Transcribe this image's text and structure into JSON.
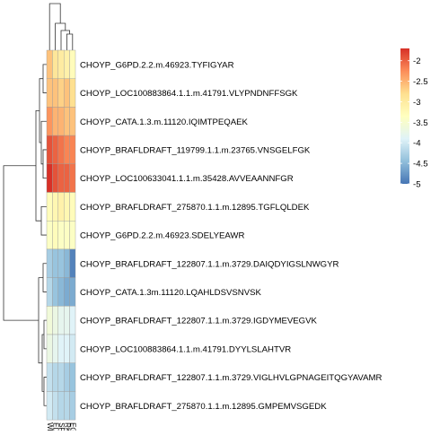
{
  "chart_data": {
    "type": "heatmap",
    "title": "",
    "rows": [
      "CHOYP_G6PD.2.2.m.46923.TYFIGYAR",
      "CHOYP_LOC100883864.1.1.m.41791.VLYPNDNFFSGK",
      "CHOYP_CATA.1.3.m.11120.IQIMTPEQAEK",
      "CHOYP_BRAFLDRAFT_119799.1.1.m.23765.VNSGELFGK",
      "CHOYP_LOC100633041.1.1.m.35428.AVVEAANNFGR",
      "CHOYP_BRAFLDRAFT_275870.1.1.m.12895.TGFLQLDEK",
      "CHOYP_G6PD.2.2.m.46923.SDELYEAWR",
      "CHOYP_BRAFLDRAFT_122807.1.1.m.3729.DAIQDYIGSLNWGYR",
      "CHOYP_CATA.1.3m.11120.LQAHLDSVSNVSK",
      "CHOYP_BRAFLDRAFT_122807.1.1.m.3729.IGDYMEVEGVK",
      "CHOYP_LOC100883864.1.1.m.41791.DYYLSLAHTVR",
      "CHOYP_BRAFLDRAFT_122807.1.1.m.3729.VIGLHVLGPNAGEITQGYAVAMR",
      "CHOYP_BRAFLDRAFT_275870.1.1.m.12895.GMPEMVSGEDK"
    ],
    "columns": [
      "WB",
      "ED",
      "SR",
      "RK",
      "EG"
    ],
    "values": [
      [
        -2.6,
        -2.9,
        -3.0,
        -3.1,
        -3.3
      ],
      [
        -2.6,
        -2.6,
        -2.7,
        -2.6,
        -2.8
      ],
      [
        -2.3,
        -2.5,
        -2.5,
        -2.6,
        -2.6
      ],
      [
        -1.9,
        -2.0,
        -2.1,
        -2.2,
        -2.2
      ],
      [
        -1.7,
        -1.9,
        -2.0,
        -2.0,
        -2.1
      ],
      [
        -3.3,
        -3.2,
        -3.1,
        -3.2,
        -3.3
      ],
      [
        -3.4,
        -3.3,
        -3.4,
        -3.4,
        -3.4
      ],
      [
        -4.3,
        -4.4,
        -4.4,
        -4.5,
        -4.9
      ],
      [
        -4.2,
        -4.4,
        -4.5,
        -4.6,
        -4.6
      ],
      [
        -3.6,
        -3.7,
        -3.8,
        -3.8,
        -3.9
      ],
      [
        -3.7,
        -3.8,
        -3.9,
        -3.9,
        -4.0
      ],
      [
        -4.1,
        -4.2,
        -4.2,
        -4.3,
        -4.4
      ],
      [
        -4.0,
        -4.1,
        -4.2,
        -4.2,
        -4.3
      ]
    ],
    "row_order_dendrogram": "hierarchical clustering (left)",
    "col_order_dendrogram": "hierarchical clustering (top)",
    "legend": {
      "position": "right",
      "ticks": [
        -2,
        -2.5,
        -3,
        -3.5,
        -4,
        -4.5,
        -5
      ],
      "range": [
        -5.0,
        -1.7
      ],
      "colors": [
        "#4575b4",
        "#91bfdb",
        "#e0f3f8",
        "#ffffbf",
        "#fee090",
        "#fc8d59",
        "#d73027"
      ]
    },
    "grid": false
  }
}
